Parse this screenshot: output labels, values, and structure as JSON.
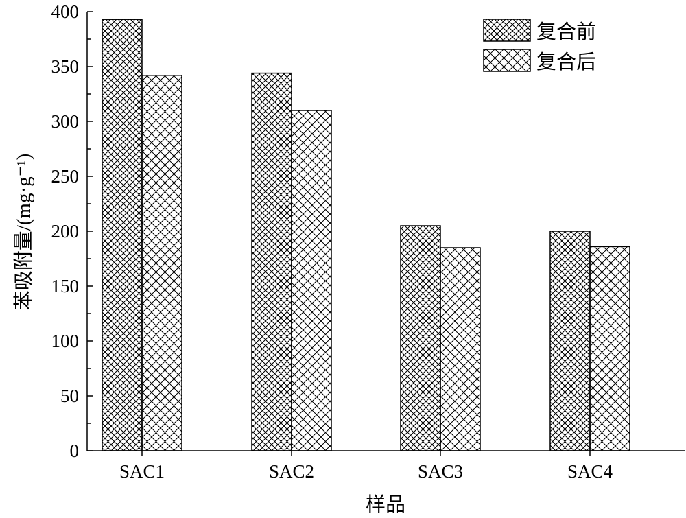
{
  "chart_data": {
    "type": "bar",
    "categories": [
      "SAC1",
      "SAC2",
      "SAC3",
      "SAC4"
    ],
    "series": [
      {
        "name": "复合前",
        "values": [
          393,
          344,
          205,
          200
        ],
        "pattern": "crosshatch-dense"
      },
      {
        "name": "复合后",
        "values": [
          342,
          310,
          185,
          186
        ],
        "pattern": "crosshatch-sparse"
      }
    ],
    "xlabel": "样品",
    "ylabel": "苯吸附量/(mg·g⁻¹)",
    "ylim": [
      0,
      400
    ],
    "yticks": [
      0,
      50,
      100,
      150,
      200,
      250,
      300,
      350,
      400
    ],
    "ytick_labels": [
      "0",
      "50",
      "100",
      "150",
      "200",
      "250",
      "300",
      "350",
      "400"
    ],
    "grid": false,
    "legend_position": "top-right",
    "colors": {
      "bar_fill": "#ffffff",
      "bar_stroke": "#000000",
      "hatch": "#000000"
    }
  }
}
